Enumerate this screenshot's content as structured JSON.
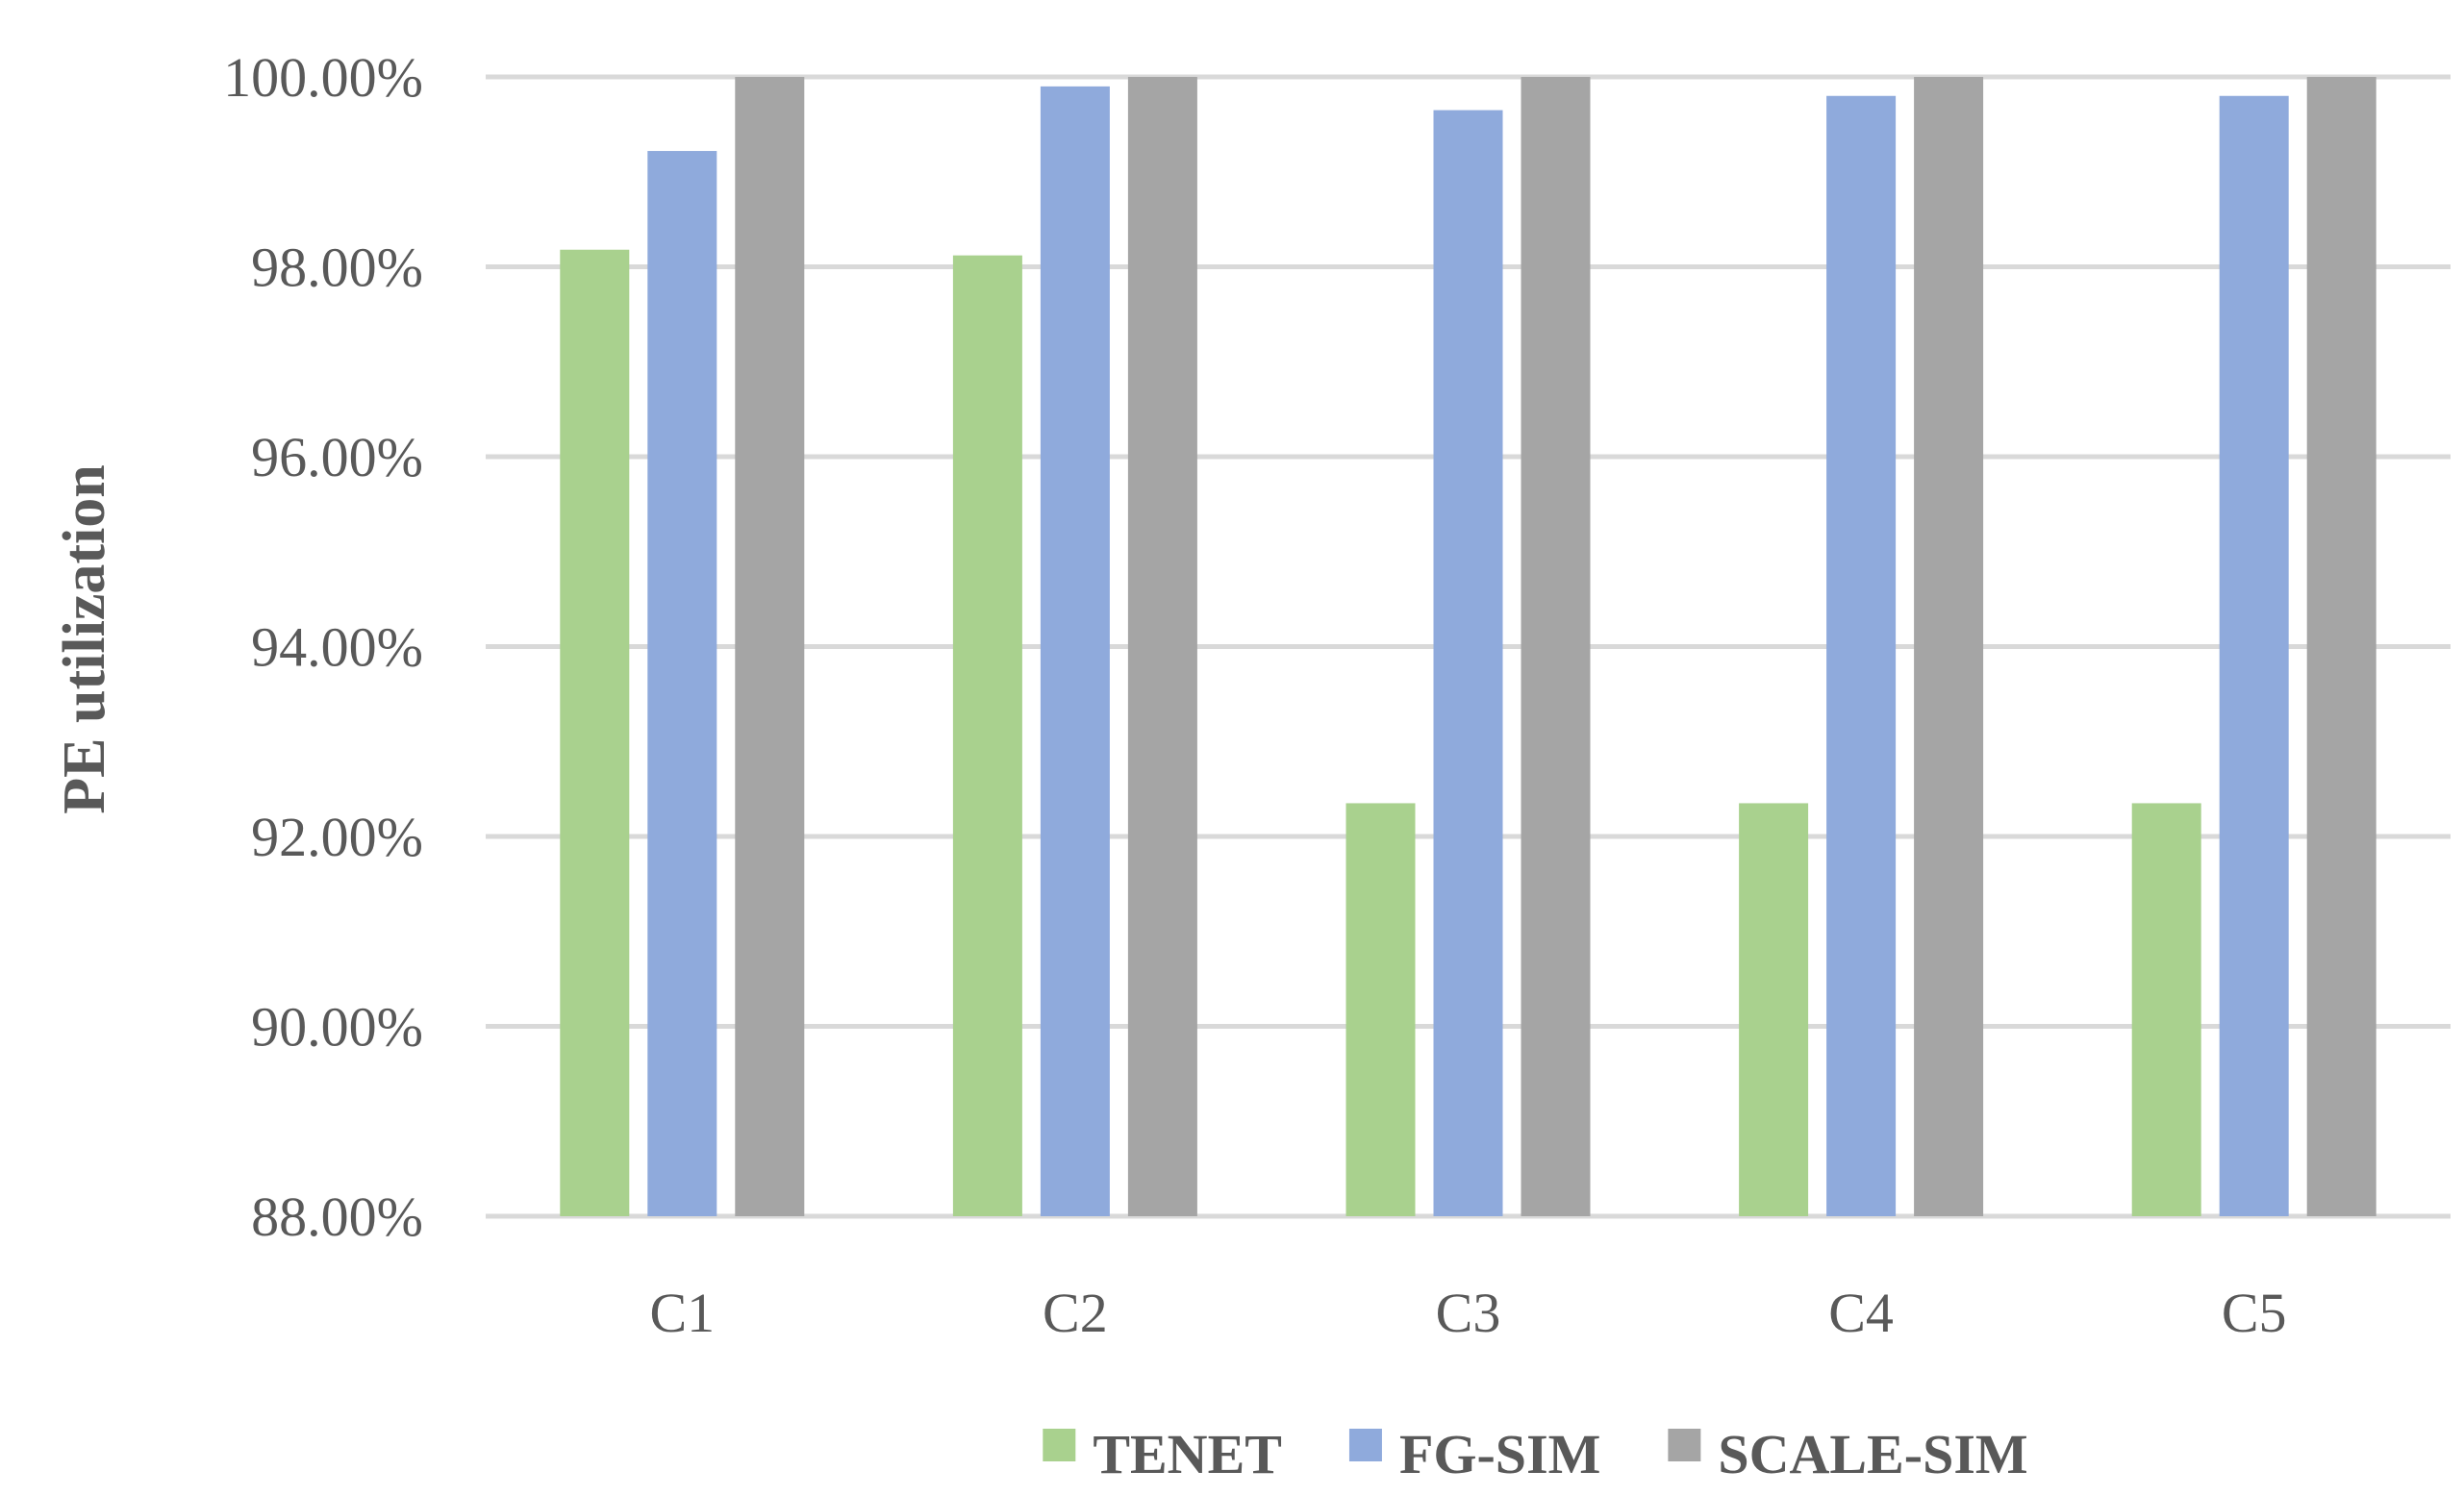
{
  "chart_data": {
    "type": "bar",
    "title": "",
    "xlabel": "",
    "ylabel": "PE utilization",
    "ylim": [
      88,
      100
    ],
    "yticks": [
      88,
      90,
      92,
      94,
      96,
      98,
      100
    ],
    "ytick_labels": [
      "88.00%",
      "90.00%",
      "92.00%",
      "94.00%",
      "96.00%",
      "98.00%",
      "100.00%"
    ],
    "categories": [
      "C1",
      "C2",
      "C3",
      "C4",
      "C5"
    ],
    "grid": true,
    "legend_position": "bottom",
    "series": [
      {
        "name": "TENET",
        "color": "#a9d18e",
        "values": [
          98.18,
          98.12,
          92.35,
          92.35,
          92.35
        ]
      },
      {
        "name": "FG-SIM",
        "color": "#8faadc",
        "values": [
          99.22,
          99.9,
          99.65,
          99.8,
          99.8
        ]
      },
      {
        "name": "SCALE-SIM",
        "color": "#a5a5a5",
        "values": [
          100.0,
          100.0,
          100.0,
          100.0,
          100.0
        ]
      }
    ],
    "colors": {
      "gridline": "#d9d9d9",
      "text": "#595959"
    }
  }
}
